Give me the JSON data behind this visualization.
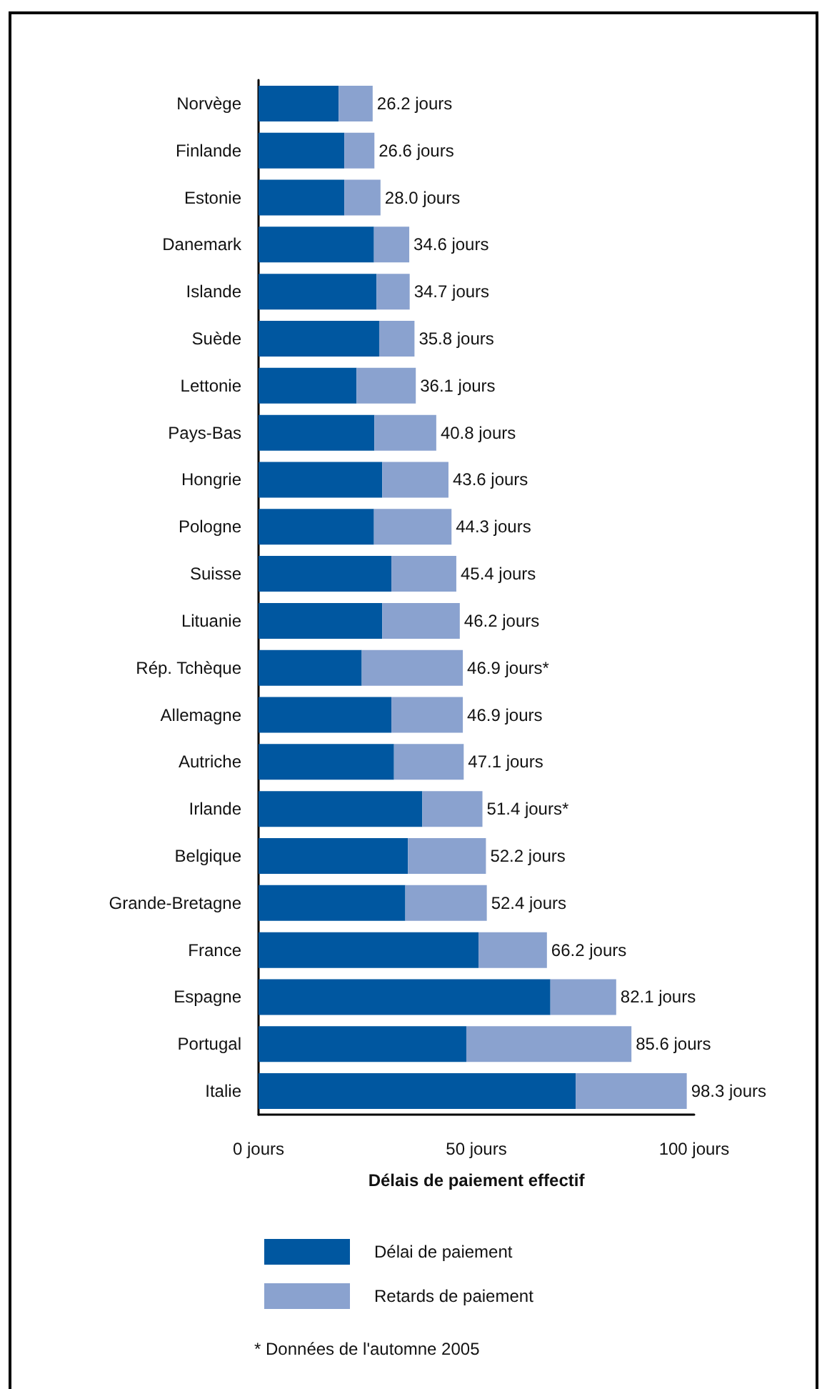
{
  "chart_data": {
    "type": "bar",
    "orientation": "horizontal",
    "stacked": true,
    "categories": [
      "Norvège",
      "Finlande",
      "Estonie",
      "Danemark",
      "Islande",
      "Suède",
      "Lettonie",
      "Pays-Bas",
      "Hongrie",
      "Pologne",
      "Suisse",
      "Lituanie",
      "Rép. Tchèque",
      "Allemagne",
      "Autriche",
      "Irlande",
      "Belgique",
      "Grande-Bretagne",
      "France",
      "Espagne",
      "Portugal",
      "Italie"
    ],
    "series": [
      {
        "name": "Délai de paiement",
        "color": "#0057a0",
        "values": [
          18.4,
          19.7,
          19.7,
          26.5,
          27.1,
          27.7,
          22.5,
          26.6,
          28.4,
          26.5,
          30.5,
          28.4,
          23.7,
          30.5,
          31.1,
          37.6,
          34.3,
          33.7,
          50.5,
          67.0,
          47.7,
          72.8
        ]
      },
      {
        "name": "Retards de paiement",
        "color": "#8aa2cf",
        "values": [
          7.8,
          6.9,
          8.3,
          8.1,
          7.6,
          8.1,
          13.6,
          14.2,
          15.2,
          17.8,
          14.9,
          17.8,
          23.2,
          16.4,
          16.0,
          13.8,
          17.9,
          18.7,
          15.7,
          15.1,
          37.9,
          25.5
        ]
      }
    ],
    "totals": [
      "26.2 jours",
      "26.6 jours",
      "28.0 jours",
      "34.6 jours",
      "34.7 jours",
      "35.8 jours",
      "36.1 jours",
      "40.8 jours",
      "43.6 jours",
      "44.3 jours",
      "45.4 jours",
      "46.2 jours",
      "46.9 jours*",
      "46.9 jours",
      "47.1 jours",
      "51.4 jours*",
      "52.2 jours",
      "52.4 jours",
      "66.2 jours",
      "82.1 jours",
      "85.6 jours",
      "98.3 jours"
    ],
    "xlim": [
      0,
      100
    ],
    "xticks": [
      {
        "value": 0,
        "label": "0 jours"
      },
      {
        "value": 50,
        "label": "50 jours"
      },
      {
        "value": 100,
        "label": "100 jours"
      }
    ],
    "xlabel": "Délais de paiement effectif",
    "grid": false,
    "legend": "bottom",
    "annotations": [
      "* Données de l'automne 2005"
    ]
  }
}
